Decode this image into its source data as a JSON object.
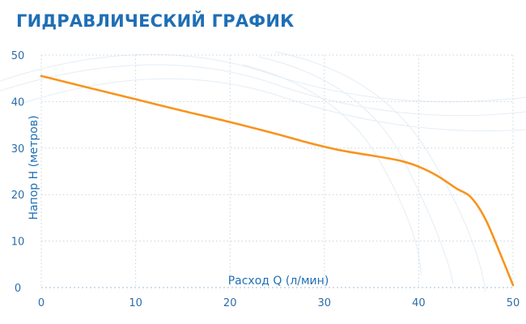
{
  "title": "ГИДРАВЛИЧЕСКИЙ ГРАФИК",
  "chart_data": {
    "type": "line",
    "title": "ГИДРАВЛИЧЕСКИЙ ГРАФИК",
    "xlabel": "Расход Q (л/мин)",
    "ylabel": "Напор H (метров)",
    "xlim": [
      0,
      50
    ],
    "ylim": [
      0,
      50
    ],
    "xticks": [
      0,
      10,
      20,
      30,
      40,
      50
    ],
    "yticks": [
      0,
      10,
      20,
      30,
      40,
      50
    ],
    "grid": true,
    "grid_style": "dotted",
    "series": [
      {
        "color": "#f7941d",
        "x": [
          0,
          5,
          10,
          15,
          20,
          25,
          28,
          30,
          32,
          35,
          38,
          40,
          42,
          44,
          45.5,
          47,
          48.5,
          50
        ],
        "y": [
          45.5,
          43,
          40.5,
          38,
          35.6,
          33,
          31.3,
          30.3,
          29.4,
          28.4,
          27.3,
          26,
          24,
          21.3,
          19.5,
          15,
          8,
          0.5
        ]
      }
    ]
  }
}
